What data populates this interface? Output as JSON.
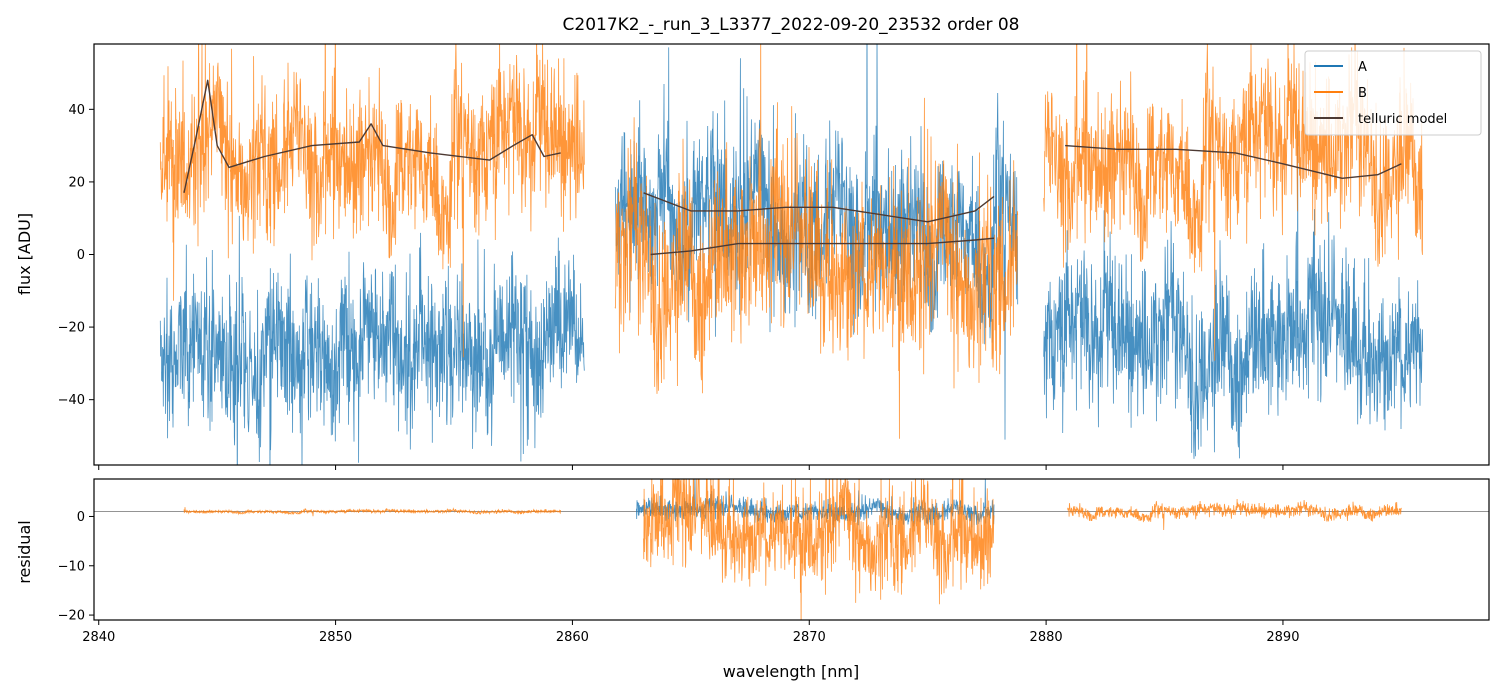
{
  "chart_data": [
    {
      "type": "line",
      "title": "C2017K2_-_run_3_L3377_2022-09-20_23532  order 08",
      "xlabel": "",
      "ylabel": "flux [ADU]",
      "xlim": [
        2839.8,
        2898.7
      ],
      "ylim": [
        -58,
        58
      ],
      "yticks": [
        -40,
        -20,
        0,
        20,
        40
      ],
      "yticklabels": [
        "−40",
        "−20",
        "0",
        "20",
        "40"
      ],
      "xticks": [
        2840,
        2850,
        2860,
        2870,
        2880,
        2890
      ],
      "show_xticklabels": false,
      "legend": {
        "position": "top-right",
        "entries": [
          "A",
          "B",
          "telluric model"
        ]
      },
      "colors": {
        "A": "#1f77b4",
        "B": "#ff7f0e",
        "model": "#4d3a33"
      },
      "series": [
        {
          "name": "A",
          "segments": [
            {
              "x_start": 2842.6,
              "x_end": 2860.5,
              "center": -27,
              "noise": 12
            },
            {
              "x_start": 2861.8,
              "x_end": 2878.8,
              "center": 10,
              "noise": 13
            },
            {
              "x_start": 2879.9,
              "x_end": 2895.9,
              "center": -26,
              "noise": 12
            }
          ]
        },
        {
          "name": "B",
          "segments": [
            {
              "x_start": 2842.6,
              "x_end": 2860.5,
              "center": 28,
              "noise": 12
            },
            {
              "x_start": 2861.8,
              "x_end": 2878.8,
              "center": -3,
              "noise": 14
            },
            {
              "x_start": 2879.9,
              "x_end": 2895.9,
              "center": 27,
              "noise": 12
            }
          ]
        },
        {
          "name": "telluric model",
          "lines": [
            {
              "x": [
                2843.6,
                2844.1,
                2844.6,
                2845.0,
                2845.5,
                2847.0,
                2849.0,
                2851.0,
                2851.5,
                2852.0,
                2854.0,
                2856.5,
                2857.5,
                2858.3,
                2858.8,
                2859.5
              ],
              "y": [
                17,
                32,
                48,
                30,
                24,
                27,
                30,
                31,
                36,
                30,
                28,
                26,
                30,
                33,
                27,
                28
              ]
            },
            {
              "x": [
                2863.0,
                2865.0,
                2867.0,
                2869.0,
                2871.0,
                2873.0,
                2875.0,
                2877.0,
                2877.8
              ],
              "y": [
                17,
                12,
                12,
                13,
                13,
                11,
                9,
                12,
                16
              ]
            },
            {
              "x": [
                2863.3,
                2865.0,
                2867.0,
                2869.0,
                2871.0,
                2873.0,
                2875.0,
                2877.0,
                2877.8
              ],
              "y": [
                0,
                1,
                3,
                3,
                3,
                3,
                3,
                4,
                4.5
              ]
            },
            {
              "x": [
                2880.8,
                2883.0,
                2885.5,
                2888.0,
                2890.0,
                2892.5,
                2894.0,
                2895.0
              ],
              "y": [
                30,
                29,
                29,
                28,
                25,
                21,
                22,
                25
              ]
            }
          ]
        }
      ]
    },
    {
      "type": "line",
      "title": "",
      "xlabel": "wavelength [nm]",
      "ylabel": "residual",
      "xlim": [
        2839.8,
        2898.7
      ],
      "ylim": [
        -21,
        7.6
      ],
      "yticks": [
        -20,
        -10,
        0
      ],
      "yticklabels": [
        "−20",
        "−10",
        "0"
      ],
      "xticks": [
        2840,
        2850,
        2860,
        2870,
        2880,
        2890
      ],
      "xticklabels": [
        "2840",
        "2850",
        "2860",
        "2870",
        "2880",
        "2890"
      ],
      "reference_line_y": 1,
      "series": [
        {
          "name": "A",
          "segments": [
            {
              "x_start": 2862.7,
              "x_end": 2877.8,
              "center": 1,
              "noise": 1.3
            }
          ]
        },
        {
          "name": "B",
          "segments": [
            {
              "x_start": 2843.6,
              "x_end": 2859.5,
              "center": 1,
              "noise": 0.2
            },
            {
              "x_start": 2863.0,
              "x_end": 2877.8,
              "center": -3,
              "noise": 6
            },
            {
              "x_start": 2880.9,
              "x_end": 2895.0,
              "center": 1,
              "noise": 0.8
            }
          ]
        }
      ]
    }
  ]
}
